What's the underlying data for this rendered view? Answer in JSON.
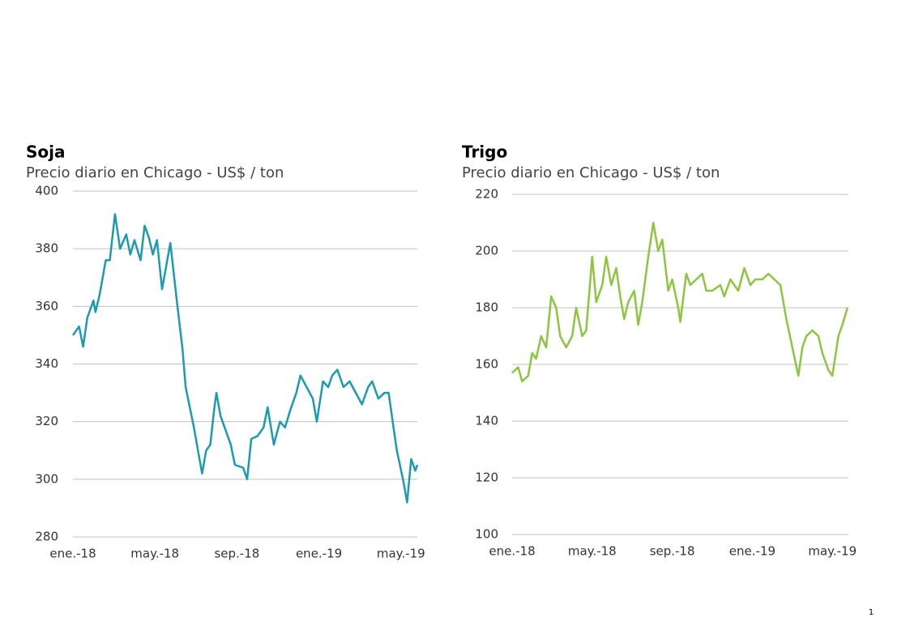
{
  "page_number": "1",
  "chart_data": [
    {
      "type": "line",
      "title": "Soja",
      "subtitle": "Precio diario en Chicago - US$ / ton",
      "color": "#1a9bb0",
      "x": [
        0,
        0.3,
        0.5,
        0.7,
        1.0,
        1.1,
        1.3,
        1.6,
        1.8,
        2.05,
        2.3,
        2.6,
        2.8,
        3.0,
        3.3,
        3.5,
        3.7,
        3.9,
        4.1,
        4.35,
        4.75,
        5.1,
        5.35,
        5.5,
        5.7,
        5.9,
        6.1,
        6.3,
        6.5,
        6.7,
        6.9,
        7.0,
        7.2,
        7.4,
        7.7,
        7.9,
        8.3,
        8.5,
        8.7,
        9.0,
        9.3,
        9.5,
        9.8,
        10.1,
        10.35,
        10.6,
        10.9,
        11.1,
        11.4,
        11.7,
        11.9,
        12.2,
        12.45,
        12.65,
        12.9,
        13.2,
        13.5,
        13.8,
        14.1,
        14.4,
        14.6,
        14.9,
        15.2,
        15.4,
        15.6,
        15.8,
        16.1,
        16.3,
        16.5,
        16.7,
        16.8
      ],
      "values": [
        350,
        353,
        346,
        356,
        362,
        358,
        364,
        376,
        376,
        392,
        380,
        385,
        378,
        383,
        376,
        388,
        384,
        378,
        383,
        366,
        382,
        360,
        345,
        332,
        325,
        318,
        310,
        302,
        310,
        312,
        325,
        330,
        322,
        318,
        312,
        305,
        304,
        300,
        314,
        315,
        318,
        325,
        312,
        320,
        318,
        324,
        330,
        336,
        332,
        328,
        320,
        334,
        332,
        336,
        338,
        332,
        334,
        330,
        326,
        332,
        334,
        328,
        330,
        330,
        320,
        310,
        300,
        292,
        307,
        303,
        305
      ],
      "xlim": [
        0,
        16.8
      ],
      "xticks": [
        {
          "value": 0,
          "label": "ene.-18"
        },
        {
          "value": 4,
          "label": "may.-18"
        },
        {
          "value": 8,
          "label": "sep.-18"
        },
        {
          "value": 12,
          "label": "ene.-19"
        },
        {
          "value": 16,
          "label": "may.-19"
        }
      ],
      "ylim": [
        280,
        400
      ],
      "yticks": [
        280,
        300,
        320,
        340,
        360,
        380,
        400
      ],
      "grid": true
    },
    {
      "type": "line",
      "title": "Trigo",
      "subtitle": "Precio diario en Chicago - US$ / ton",
      "color": "#8cc63f",
      "x": [
        0,
        0.3,
        0.5,
        0.8,
        1.0,
        1.2,
        1.45,
        1.7,
        1.95,
        2.2,
        2.4,
        2.7,
        3.0,
        3.2,
        3.5,
        3.7,
        4.0,
        4.2,
        4.5,
        4.7,
        4.95,
        5.2,
        5.4,
        5.6,
        5.8,
        6.1,
        6.3,
        6.5,
        6.8,
        7.05,
        7.3,
        7.5,
        7.8,
        8.0,
        8.3,
        8.4,
        8.7,
        8.9,
        9.2,
        9.5,
        9.7,
        10.0,
        10.4,
        10.6,
        10.9,
        11.3,
        11.6,
        11.9,
        12.15,
        12.5,
        12.8,
        13.1,
        13.4,
        13.7,
        14.0,
        14.3,
        14.5,
        14.7,
        15.0,
        15.3,
        15.5,
        15.8,
        16.0,
        16.3,
        16.5,
        16.75
      ],
      "values": [
        157,
        159,
        154,
        156,
        164,
        162,
        170,
        166,
        184,
        180,
        170,
        166,
        170,
        180,
        170,
        172,
        198,
        182,
        188,
        198,
        188,
        194,
        184,
        176,
        182,
        186,
        174,
        182,
        198,
        210,
        200,
        204,
        186,
        190,
        180,
        175,
        192,
        188,
        190,
        192,
        186,
        186,
        188,
        184,
        190,
        186,
        194,
        188,
        190,
        190,
        192,
        190,
        188,
        176,
        166,
        156,
        166,
        170,
        172,
        170,
        164,
        158,
        156,
        170,
        174,
        180
      ],
      "xlim": [
        0,
        16.8
      ],
      "xticks": [
        {
          "value": 0,
          "label": "ene.-18"
        },
        {
          "value": 4,
          "label": "may.-18"
        },
        {
          "value": 8,
          "label": "sep.-18"
        },
        {
          "value": 12,
          "label": "ene.-19"
        },
        {
          "value": 16,
          "label": "may.-19"
        }
      ],
      "ylim": [
        100,
        220
      ],
      "yticks": [
        100,
        120,
        140,
        160,
        180,
        200,
        220
      ],
      "grid": true
    }
  ]
}
